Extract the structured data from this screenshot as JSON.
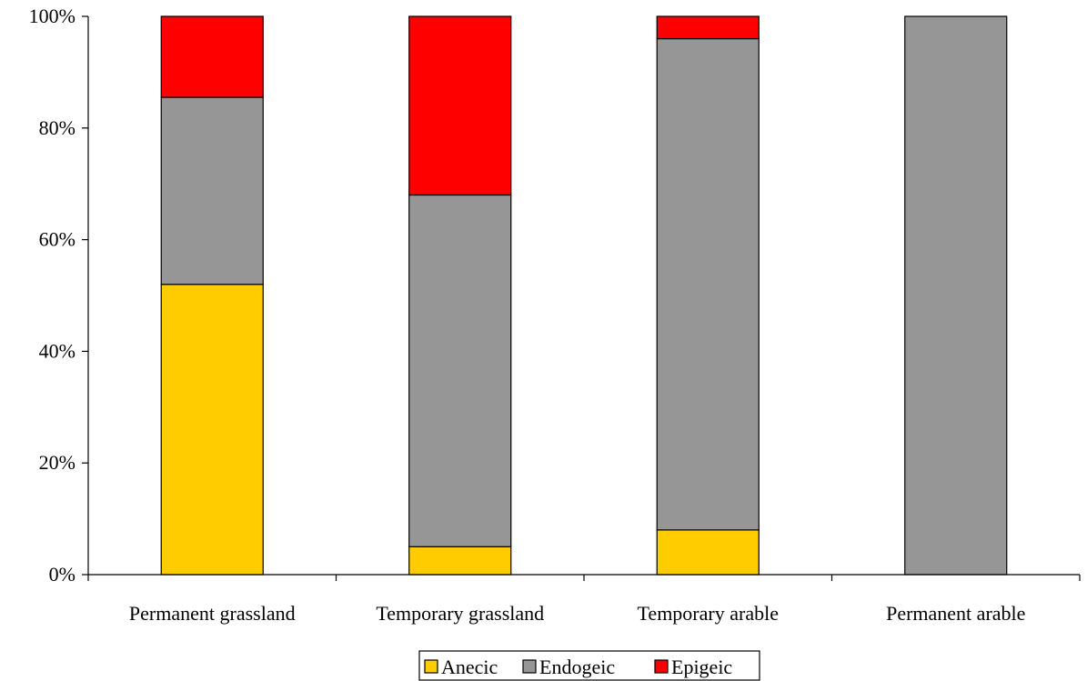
{
  "chart_data": {
    "type": "bar",
    "stacked": true,
    "percent_stacked": true,
    "categories": [
      "Permanent grassland",
      "Temporary grassland",
      "Temporary arable",
      "Permanent arable"
    ],
    "series": [
      {
        "name": "Anecic",
        "color": "#FFCC00",
        "values": [
          52,
          5,
          8,
          0
        ]
      },
      {
        "name": "Endogeic",
        "color": "#969696",
        "values": [
          33.5,
          63,
          88,
          100
        ]
      },
      {
        "name": "Epigeic",
        "color": "#FF0000",
        "values": [
          14.5,
          32,
          4,
          0
        ]
      }
    ],
    "ylim": [
      0,
      100
    ],
    "yticks": [
      "0%",
      "20%",
      "40%",
      "60%",
      "80%",
      "100%"
    ],
    "ytick_values": [
      0,
      20,
      40,
      60,
      80,
      100
    ],
    "grid": false,
    "legend_position": "bottom"
  }
}
